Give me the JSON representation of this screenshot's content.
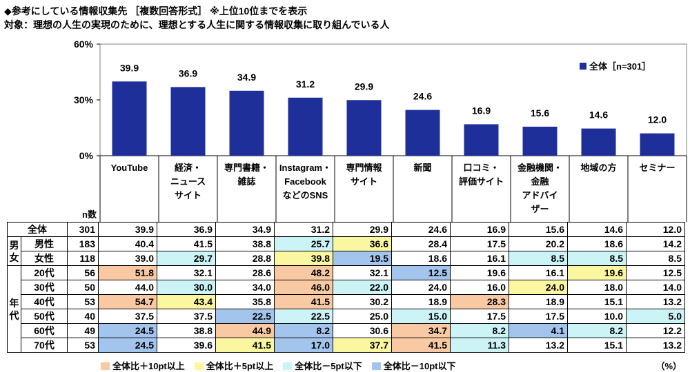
{
  "header": {
    "title": "◆参考にしている情報収集先 ［複数回答形式］ ※上位10位までを表示",
    "subtitle": "対象：理想の人生の実現のために、理想とする人生に関する情報収集に取り組んでいる人"
  },
  "chart_data": {
    "type": "bar",
    "categories": [
      "YouTube",
      "経済・ニュースサイト",
      "専門書籍・雑誌",
      "Instagram・FacebookなどのSNS",
      "専門情報サイト",
      "新聞",
      "口コミ・評価サイト",
      "金融機関・金融アドバイザー",
      "地域の方",
      "セミナー"
    ],
    "category_lines": [
      [
        "YouTube"
      ],
      [
        "経済・",
        "ニュース",
        "サイト"
      ],
      [
        "専門書籍・",
        "雑誌"
      ],
      [
        "Instagram・",
        "Facebook",
        "などのSNS"
      ],
      [
        "専門情報",
        "サイト"
      ],
      [
        "新聞"
      ],
      [
        "口コミ・",
        "評価サイト"
      ],
      [
        "金融機関・",
        "金融",
        "アドバイ",
        "ザー"
      ],
      [
        "地域の方"
      ],
      [
        "セミナー"
      ]
    ],
    "series": [
      {
        "name": "全体［n=301］",
        "values": [
          39.9,
          36.9,
          34.9,
          31.2,
          29.9,
          24.6,
          16.9,
          15.6,
          14.6,
          12.0
        ],
        "color": "#1f2f9a"
      }
    ],
    "value_labels": [
      "39.9",
      "36.9",
      "34.9",
      "31.2",
      "29.9",
      "24.6",
      "16.9",
      "15.6",
      "14.6",
      "12.0"
    ],
    "ylim": [
      0,
      60
    ],
    "yticks": [
      0,
      30,
      60
    ],
    "ytick_labels": [
      "0%",
      "30%",
      "60%"
    ],
    "grid": false,
    "legend": "top-right",
    "legend_label": "全体［n=301］"
  },
  "table": {
    "n_header": "n数",
    "rows": [
      {
        "group": "",
        "label": "全体",
        "n": "301",
        "values": [
          "39.9",
          "36.9",
          "34.9",
          "31.2",
          "29.9",
          "24.6",
          "16.9",
          "15.6",
          "14.6",
          "12.0"
        ],
        "highlight": [
          "",
          "",
          "",
          "",
          "",
          "",
          "",
          "",
          "",
          ""
        ]
      },
      {
        "group": "男女",
        "label": "男性",
        "n": "183",
        "values": [
          "40.4",
          "41.5",
          "38.8",
          "25.7",
          "36.6",
          "28.4",
          "17.5",
          "20.2",
          "18.6",
          "14.2"
        ],
        "highlight": [
          "",
          "",
          "",
          "lo5",
          "hi5",
          "",
          "",
          "",
          "",
          ""
        ]
      },
      {
        "group": "",
        "label": "女性",
        "n": "118",
        "values": [
          "39.0",
          "29.7",
          "28.8",
          "39.8",
          "19.5",
          "18.6",
          "16.1",
          "8.5",
          "8.5",
          "8.5"
        ],
        "highlight": [
          "",
          "lo5",
          "",
          "hi5",
          "lo10",
          "",
          "",
          "lo5",
          "lo5",
          ""
        ]
      },
      {
        "group": "年代",
        "label": "20代",
        "n": "56",
        "values": [
          "51.8",
          "32.1",
          "28.6",
          "48.2",
          "32.1",
          "12.5",
          "19.6",
          "16.1",
          "19.6",
          "12.5"
        ],
        "highlight": [
          "hi10",
          "",
          "",
          "hi10",
          "",
          "lo10",
          "",
          "",
          "hi5",
          ""
        ]
      },
      {
        "group": "",
        "label": "30代",
        "n": "50",
        "values": [
          "44.0",
          "30.0",
          "34.0",
          "46.0",
          "22.0",
          "24.0",
          "16.0",
          "24.0",
          "18.0",
          "14.0"
        ],
        "highlight": [
          "",
          "lo5",
          "",
          "hi10",
          "lo5",
          "",
          "",
          "hi5",
          "",
          ""
        ]
      },
      {
        "group": "",
        "label": "40代",
        "n": "53",
        "values": [
          "54.7",
          "43.4",
          "35.8",
          "41.5",
          "30.2",
          "18.9",
          "28.3",
          "18.9",
          "15.1",
          "13.2"
        ],
        "highlight": [
          "hi10",
          "hi5",
          "",
          "hi10",
          "",
          "",
          "hi10",
          "",
          "",
          ""
        ]
      },
      {
        "group": "",
        "label": "50代",
        "n": "40",
        "values": [
          "37.5",
          "37.5",
          "22.5",
          "22.5",
          "25.0",
          "15.0",
          "17.5",
          "17.5",
          "10.0",
          "5.0"
        ],
        "highlight": [
          "",
          "",
          "lo10",
          "lo5",
          "",
          "lo5",
          "",
          "",
          "",
          "lo5"
        ]
      },
      {
        "group": "",
        "label": "60代",
        "n": "49",
        "values": [
          "24.5",
          "38.8",
          "44.9",
          "8.2",
          "30.6",
          "34.7",
          "8.2",
          "4.1",
          "8.2",
          "12.2"
        ],
        "highlight": [
          "lo10",
          "",
          "hi10",
          "lo10",
          "",
          "hi10",
          "lo5",
          "lo10",
          "lo5",
          ""
        ]
      },
      {
        "group": "",
        "label": "70代",
        "n": "53",
        "values": [
          "24.5",
          "39.6",
          "41.5",
          "17.0",
          "37.7",
          "41.5",
          "11.3",
          "13.2",
          "15.1",
          "13.2"
        ],
        "highlight": [
          "lo10",
          "",
          "hi5",
          "lo10",
          "hi5",
          "hi10",
          "lo5",
          "",
          "",
          ""
        ]
      }
    ]
  },
  "legend_items": [
    {
      "key": "hi10",
      "label": "全体比＋10pt以上",
      "color": "#f8c9a3"
    },
    {
      "key": "hi5",
      "label": "全体比＋5pt以上",
      "color": "#fbf7a0"
    },
    {
      "key": "lo5",
      "label": "全体比－5pt以下",
      "color": "#ccf3f6"
    },
    {
      "key": "lo10",
      "label": "全体比－10pt以下",
      "color": "#a3c4ec"
    }
  ],
  "unit": "（%）"
}
